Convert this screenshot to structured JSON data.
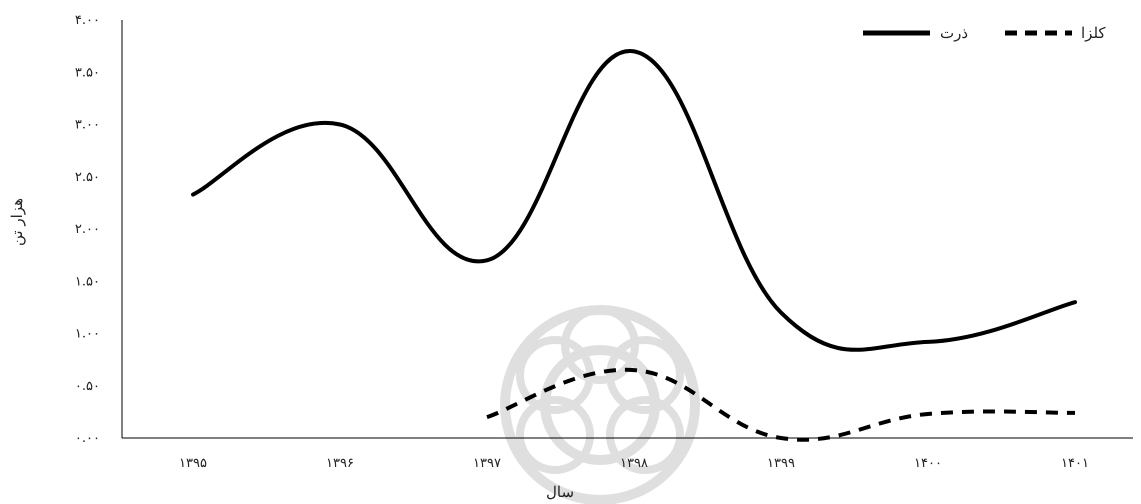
{
  "chart_data": {
    "type": "line",
    "title": "",
    "xlabel": "سال",
    "ylabel": "هزار تن",
    "categories": [
      "۱۳۹۵",
      "۱۳۹۶",
      "۱۳۹۷",
      "۱۳۹۸",
      "۱۳۹۹",
      "۱۴۰۰",
      "۱۴۰۱"
    ],
    "y_tick_labels": [
      "۰.۰۰",
      "۰.۵۰",
      "۱.۰۰",
      "۱.۵۰",
      "۲.۰۰",
      "۲.۵۰",
      "۳.۰۰",
      "۳.۵۰",
      "۴.۰۰"
    ],
    "ylim": [
      0,
      4
    ],
    "grid": false,
    "legend_position": "top-right",
    "series": [
      {
        "name": "ذرت",
        "values": [
          2.33,
          3.0,
          1.7,
          3.7,
          1.2,
          0.92,
          1.3
        ],
        "color": "#000000",
        "style": "solid"
      },
      {
        "name": "کلزا",
        "values": [
          null,
          null,
          0.2,
          0.65,
          0.0,
          0.23,
          0.24
        ],
        "color": "#000000",
        "style": "dashed"
      }
    ]
  }
}
